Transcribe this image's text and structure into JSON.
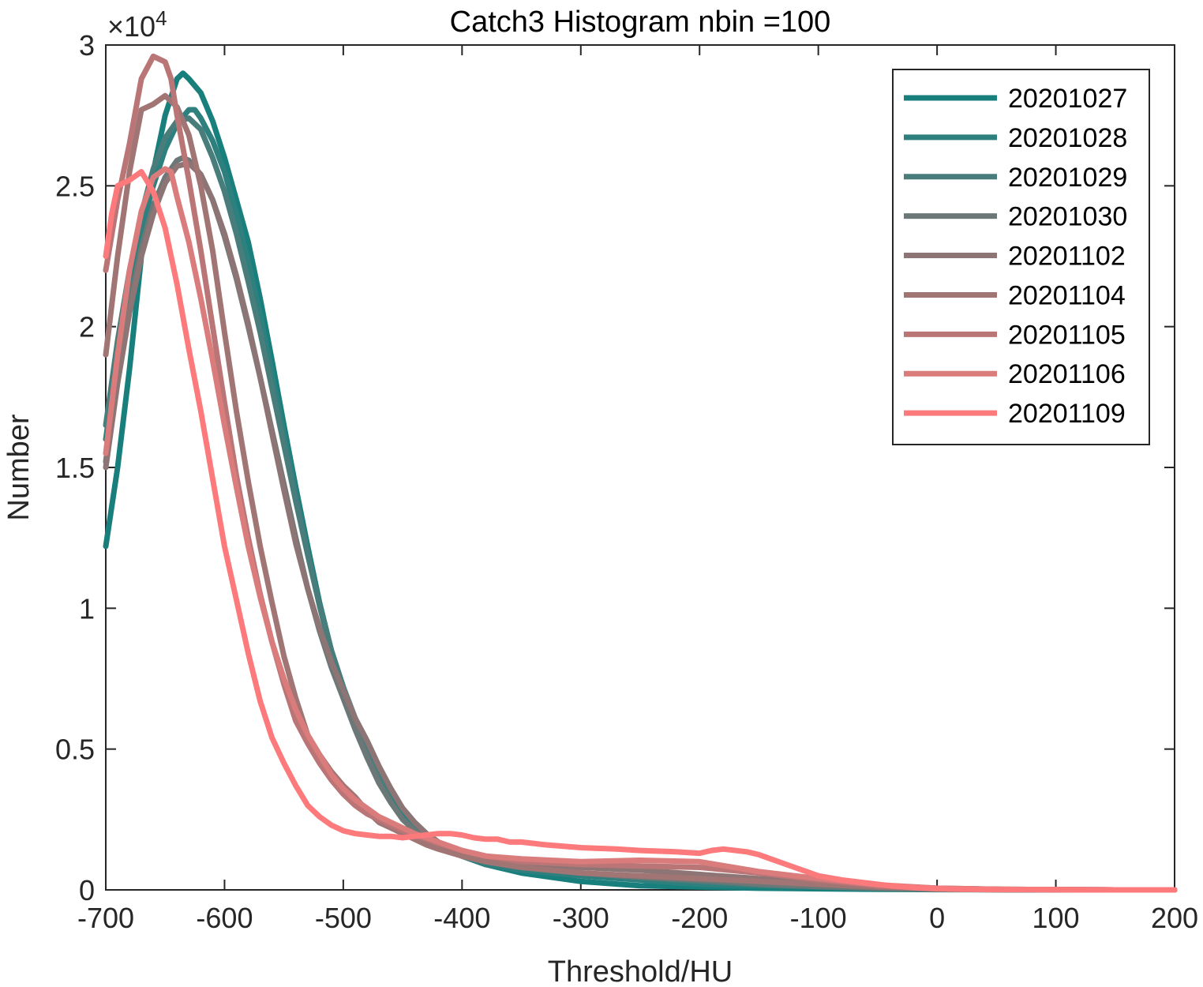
{
  "chart_data": {
    "type": "line",
    "title": "Catch3  Histogram nbin =100",
    "xlabel": "Threshold/HU",
    "ylabel": "Number",
    "y_exponent_label": "×10",
    "y_exponent_power": "4",
    "xlim": [
      -700,
      200
    ],
    "ylim": [
      0,
      30000
    ],
    "x_ticks": [
      -700,
      -600,
      -500,
      -400,
      -300,
      -200,
      -100,
      0,
      100,
      200
    ],
    "x_tick_labels": [
      "-700",
      "-600",
      "-500",
      "-400",
      "-300",
      "-200",
      "-100",
      "0",
      "100",
      "200"
    ],
    "y_ticks": [
      0,
      5000,
      10000,
      15000,
      20000,
      25000,
      30000
    ],
    "y_tick_labels": [
      "0",
      "0.5",
      "1",
      "1.5",
      "2",
      "2.5",
      "3"
    ],
    "grid": false,
    "legend_position": "top-right",
    "series": [
      {
        "name": "20201027",
        "color": "#187F7D",
        "x": [
          -700,
          -690,
          -680,
          -670,
          -660,
          -650,
          -640,
          -635,
          -630,
          -620,
          -610,
          -600,
          -590,
          -580,
          -570,
          -560,
          -550,
          -540,
          -530,
          -520,
          -510,
          -500,
          -490,
          -480,
          -470,
          -460,
          -450,
          -440,
          -430,
          -420,
          -400,
          -380,
          -350,
          -300,
          -250,
          -200,
          -150,
          -100,
          -50,
          0,
          50,
          100,
          150,
          200
        ],
        "y": [
          12200,
          15000,
          18500,
          22500,
          25500,
          27500,
          28800,
          29000,
          28800,
          28300,
          27300,
          26000,
          24500,
          23000,
          21000,
          18800,
          16500,
          14300,
          12200,
          10200,
          8500,
          7200,
          6000,
          4900,
          4000,
          3300,
          2700,
          2300,
          1900,
          1600,
          1200,
          900,
          600,
          300,
          150,
          100,
          60,
          40,
          20,
          10,
          5,
          0,
          0,
          0
        ]
      },
      {
        "name": "20201028",
        "color": "#2E807E",
        "x": [
          -700,
          -690,
          -680,
          -670,
          -660,
          -650,
          -640,
          -630,
          -625,
          -620,
          -610,
          -600,
          -590,
          -580,
          -570,
          -560,
          -550,
          -540,
          -530,
          -520,
          -510,
          -500,
          -490,
          -480,
          -470,
          -460,
          -450,
          -440,
          -430,
          -420,
          -400,
          -380,
          -350,
          -300,
          -250,
          -200,
          -150,
          -100,
          -50,
          0,
          50,
          100,
          150,
          200
        ],
        "y": [
          16000,
          19000,
          21500,
          23500,
          25000,
          26300,
          27200,
          27700,
          27700,
          27400,
          26600,
          25500,
          24000,
          22300,
          20400,
          18300,
          16200,
          14100,
          12000,
          10100,
          8400,
          7100,
          6000,
          5000,
          4100,
          3400,
          2800,
          2300,
          1900,
          1600,
          1200,
          900,
          700,
          500,
          350,
          200,
          150,
          100,
          50,
          20,
          10,
          0,
          0,
          0
        ]
      },
      {
        "name": "20201029",
        "color": "#487D7C",
        "x": [
          -700,
          -690,
          -680,
          -670,
          -660,
          -650,
          -640,
          -630,
          -620,
          -610,
          -600,
          -590,
          -580,
          -570,
          -560,
          -550,
          -540,
          -530,
          -520,
          -510,
          -500,
          -490,
          -480,
          -470,
          -460,
          -450,
          -440,
          -430,
          -420,
          -400,
          -380,
          -350,
          -300,
          -250,
          -200,
          -150,
          -100,
          -50,
          0,
          50,
          100,
          150,
          200
        ],
        "y": [
          16500,
          19500,
          22000,
          24000,
          25600,
          26700,
          27300,
          27400,
          27000,
          26000,
          24800,
          23300,
          21600,
          19800,
          17800,
          15800,
          13800,
          11900,
          10100,
          8500,
          7200,
          6100,
          5100,
          4200,
          3500,
          2900,
          2400,
          2000,
          1700,
          1300,
          1000,
          800,
          600,
          450,
          300,
          200,
          120,
          60,
          20,
          10,
          0,
          0,
          0
        ]
      },
      {
        "name": "20201030",
        "color": "#6C7877",
        "x": [
          -700,
          -690,
          -680,
          -670,
          -660,
          -650,
          -640,
          -635,
          -630,
          -620,
          -610,
          -600,
          -590,
          -580,
          -570,
          -560,
          -550,
          -540,
          -530,
          -520,
          -510,
          -500,
          -490,
          -480,
          -470,
          -460,
          -450,
          -440,
          -430,
          -420,
          -400,
          -380,
          -350,
          -300,
          -250,
          -200,
          -150,
          -100,
          -50,
          0,
          50,
          100,
          150,
          200
        ],
        "y": [
          15200,
          18200,
          20800,
          22800,
          24300,
          25300,
          25900,
          26000,
          25900,
          25400,
          24500,
          23200,
          21700,
          20000,
          18200,
          16300,
          14400,
          12500,
          10700,
          9200,
          7900,
          6800,
          5700,
          4700,
          3800,
          3100,
          2500,
          2100,
          1800,
          1550,
          1200,
          1000,
          800,
          600,
          450,
          350,
          200,
          120,
          60,
          20,
          10,
          0,
          0,
          0
        ]
      },
      {
        "name": "20201102",
        "color": "#8D7575",
        "x": [
          -700,
          -690,
          -680,
          -670,
          -660,
          -650,
          -640,
          -630,
          -620,
          -610,
          -600,
          -590,
          -580,
          -570,
          -560,
          -550,
          -540,
          -530,
          -520,
          -510,
          -500,
          -490,
          -480,
          -470,
          -460,
          -450,
          -440,
          -430,
          -420,
          -400,
          -380,
          -350,
          -300,
          -250,
          -200,
          -150,
          -100,
          -50,
          0,
          50,
          100,
          150,
          200
        ],
        "y": [
          15000,
          18000,
          20500,
          22500,
          24000,
          25100,
          25700,
          25800,
          25400,
          24500,
          23300,
          21800,
          20100,
          18200,
          16200,
          14200,
          12300,
          10700,
          9300,
          8100,
          7100,
          6100,
          5300,
          4400,
          3600,
          2900,
          2400,
          2000,
          1700,
          1300,
          1100,
          900,
          800,
          700,
          550,
          400,
          250,
          150,
          60,
          20,
          10,
          0,
          0
        ]
      },
      {
        "name": "20201104",
        "color": "#A07574",
        "x": [
          -700,
          -690,
          -680,
          -670,
          -660,
          -650,
          -640,
          -630,
          -620,
          -610,
          -600,
          -590,
          -580,
          -570,
          -560,
          -550,
          -540,
          -530,
          -520,
          -510,
          -500,
          -490,
          -480,
          -470,
          -460,
          -450,
          -440,
          -430,
          -420,
          -400,
          -380,
          -350,
          -300,
          -250,
          -200,
          -150,
          -100,
          -50,
          0,
          50,
          100,
          150,
          200
        ],
        "y": [
          19000,
          22500,
          25500,
          27700,
          27900,
          28200,
          27800,
          26800,
          25000,
          22700,
          19800,
          17000,
          14500,
          12200,
          10200,
          8300,
          6800,
          5500,
          4800,
          4200,
          3700,
          3300,
          2800,
          2400,
          2200,
          2000,
          1800,
          1600,
          1450,
          1200,
          1000,
          800,
          600,
          500,
          400,
          300,
          200,
          100,
          50,
          20,
          10,
          0,
          0
        ]
      },
      {
        "name": "20201105",
        "color": "#BA7576",
        "x": [
          -700,
          -690,
          -680,
          -670,
          -660,
          -650,
          -645,
          -640,
          -630,
          -620,
          -610,
          -600,
          -590,
          -580,
          -570,
          -560,
          -550,
          -540,
          -530,
          -520,
          -510,
          -500,
          -490,
          -480,
          -470,
          -460,
          -450,
          -440,
          -430,
          -420,
          -400,
          -380,
          -350,
          -300,
          -250,
          -200,
          -150,
          -100,
          -50,
          0,
          50,
          100,
          150,
          200
        ],
        "y": [
          22000,
          24500,
          26500,
          28800,
          29600,
          29400,
          28800,
          27500,
          25200,
          22700,
          20000,
          17300,
          14700,
          12500,
          10500,
          8800,
          7300,
          6000,
          5200,
          4500,
          3900,
          3400,
          3000,
          2700,
          2500,
          2300,
          2100,
          1950,
          1800,
          1650,
          1400,
          1200,
          1000,
          900,
          850,
          800,
          600,
          350,
          150,
          50,
          20,
          10,
          0,
          0
        ]
      },
      {
        "name": "20201106",
        "color": "#DA7B7C",
        "x": [
          -700,
          -690,
          -680,
          -670,
          -660,
          -650,
          -645,
          -640,
          -630,
          -620,
          -610,
          -600,
          -590,
          -580,
          -570,
          -560,
          -550,
          -540,
          -530,
          -520,
          -510,
          -500,
          -490,
          -480,
          -470,
          -460,
          -450,
          -440,
          -430,
          -420,
          -400,
          -380,
          -350,
          -300,
          -250,
          -200,
          -150,
          -100,
          -50,
          0,
          50,
          100,
          150,
          200
        ],
        "y": [
          15500,
          19000,
          22000,
          24100,
          25300,
          25600,
          25500,
          24600,
          23000,
          21000,
          18800,
          16500,
          14300,
          12200,
          10400,
          8800,
          7500,
          6400,
          5500,
          4800,
          4100,
          3600,
          3200,
          2900,
          2600,
          2400,
          2200,
          2000,
          1850,
          1700,
          1400,
          1200,
          1100,
          1000,
          1050,
          1000,
          650,
          400,
          180,
          60,
          20,
          10,
          0,
          0
        ]
      },
      {
        "name": "20201109",
        "color": "#FC7A7B",
        "x": [
          -700,
          -695,
          -690,
          -680,
          -670,
          -660,
          -650,
          -640,
          -630,
          -620,
          -610,
          -600,
          -590,
          -580,
          -570,
          -560,
          -550,
          -540,
          -530,
          -520,
          -510,
          -500,
          -490,
          -480,
          -470,
          -460,
          -450,
          -440,
          -430,
          -420,
          -410,
          -400,
          -390,
          -380,
          -370,
          -360,
          -350,
          -330,
          -300,
          -270,
          -250,
          -220,
          -200,
          -190,
          -180,
          -160,
          -150,
          -140,
          -120,
          -100,
          -80,
          -60,
          -40,
          -20,
          0,
          20,
          50,
          100,
          150,
          200
        ],
        "y": [
          22500,
          24000,
          25000,
          25200,
          25500,
          24800,
          23500,
          21500,
          19200,
          17000,
          14600,
          12200,
          10300,
          8400,
          6700,
          5400,
          4500,
          3700,
          3000,
          2600,
          2300,
          2100,
          2000,
          1950,
          1900,
          1900,
          1850,
          1900,
          1950,
          2000,
          2000,
          1950,
          1850,
          1800,
          1800,
          1700,
          1700,
          1600,
          1500,
          1450,
          1400,
          1350,
          1300,
          1400,
          1450,
          1350,
          1250,
          1100,
          800,
          500,
          350,
          250,
          150,
          80,
          40,
          20,
          10,
          5,
          0,
          0
        ]
      }
    ]
  }
}
